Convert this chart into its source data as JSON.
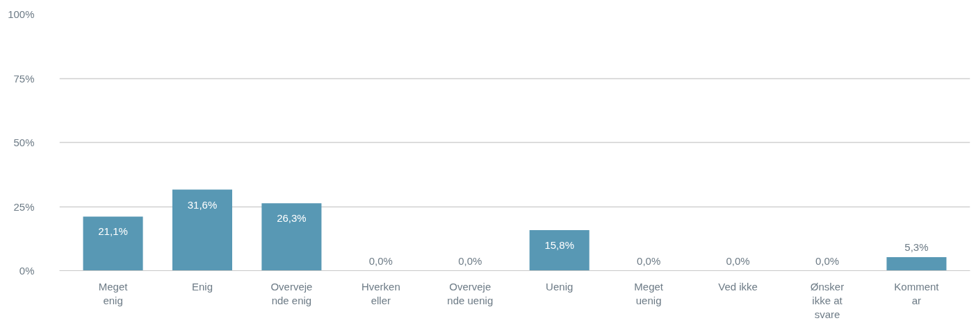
{
  "chart_data": {
    "type": "bar",
    "categories": [
      "Meget\nenig",
      "Enig",
      "Overveje\nnde enig",
      "Hverken\neller",
      "Overveje\nnde uenig",
      "Uenig",
      "Meget\nuenig",
      "Ved ikke",
      "Ønsker\nikke at\nsvare",
      "Komment\nar"
    ],
    "values": [
      21.1,
      31.6,
      26.3,
      0,
      0,
      15.8,
      0,
      0,
      0,
      5.3
    ],
    "value_labels": [
      "21,1%",
      "31,6%",
      "26,3%",
      "0,0%",
      "0,0%",
      "15,8%",
      "0,0%",
      "0,0%",
      "0,0%",
      "5,3%"
    ],
    "color": "#5898b4",
    "ylim": [
      0,
      100
    ],
    "yticks": [
      {
        "value": 0,
        "label": "0%"
      },
      {
        "value": 25,
        "label": "25%"
      },
      {
        "value": 50,
        "label": "50%"
      },
      {
        "value": 75,
        "label": "75%"
      },
      {
        "value": 100,
        "label": "100%"
      }
    ],
    "grid": "y"
  }
}
